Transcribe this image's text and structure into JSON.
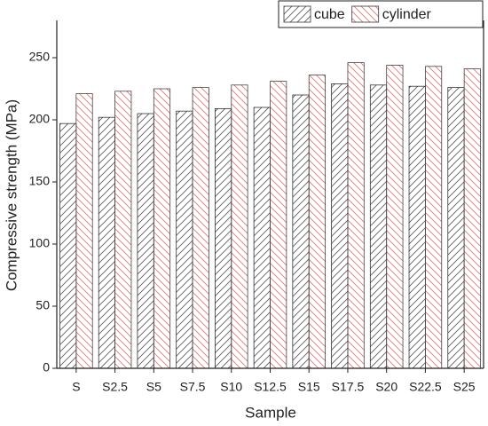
{
  "chart_data": {
    "type": "bar",
    "x_label": "Sample",
    "y_label": "Compressive strength (MPa)",
    "categories": [
      "S",
      "S2.5",
      "S5",
      "S7.5",
      "S10",
      "S12.5",
      "S15",
      "S17.5",
      "S20",
      "S22.5",
      "S25"
    ],
    "series": [
      {
        "name": "cube",
        "color": "#555555",
        "values": [
          197,
          202,
          205,
          207,
          209,
          210,
          220,
          229,
          228,
          227,
          226
        ]
      },
      {
        "name": "cylinder",
        "color": "#e07070",
        "values": [
          221,
          223,
          225,
          226,
          228,
          231,
          236,
          246,
          244,
          243,
          241
        ]
      }
    ],
    "ylim": [
      0,
      280
    ],
    "yticks": [
      0,
      50,
      100,
      150,
      200,
      250
    ],
    "legend": "upper right"
  }
}
